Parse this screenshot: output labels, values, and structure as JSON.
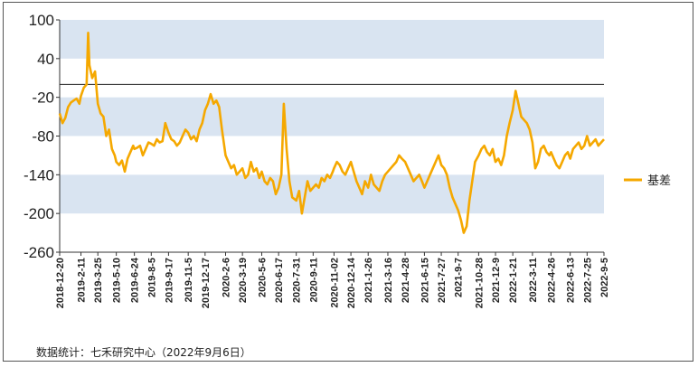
{
  "chart_data": {
    "type": "line",
    "series": [
      {
        "name": "基差",
        "color": "#F5A800",
        "points": [
          [
            "2018-12-20",
            -45
          ],
          [
            "2018-12-27",
            -60
          ],
          [
            "2019-01-03",
            -52
          ],
          [
            "2019-01-10",
            -35
          ],
          [
            "2019-01-17",
            -28
          ],
          [
            "2019-01-24",
            -25
          ],
          [
            "2019-01-31",
            -22
          ],
          [
            "2019-02-07",
            -30
          ],
          [
            "2019-02-11",
            -18
          ],
          [
            "2019-02-18",
            -5
          ],
          [
            "2019-02-25",
            0
          ],
          [
            "2019-03-01",
            80
          ],
          [
            "2019-03-04",
            30
          ],
          [
            "2019-03-11",
            10
          ],
          [
            "2019-03-18",
            20
          ],
          [
            "2019-03-25",
            -30
          ],
          [
            "2019-04-01",
            -45
          ],
          [
            "2019-04-08",
            -50
          ],
          [
            "2019-04-15",
            -80
          ],
          [
            "2019-04-22",
            -70
          ],
          [
            "2019-04-29",
            -100
          ],
          [
            "2019-05-06",
            -110
          ],
          [
            "2019-05-10",
            -120
          ],
          [
            "2019-05-17",
            -125
          ],
          [
            "2019-05-24",
            -118
          ],
          [
            "2019-05-31",
            -135
          ],
          [
            "2019-06-07",
            -115
          ],
          [
            "2019-06-14",
            -105
          ],
          [
            "2019-06-21",
            -95
          ],
          [
            "2019-06-24",
            -100
          ],
          [
            "2019-07-01",
            -98
          ],
          [
            "2019-07-08",
            -95
          ],
          [
            "2019-07-15",
            -110
          ],
          [
            "2019-07-22",
            -100
          ],
          [
            "2019-07-29",
            -90
          ],
          [
            "2019-08-05",
            -92
          ],
          [
            "2019-08-12",
            -95
          ],
          [
            "2019-08-19",
            -85
          ],
          [
            "2019-08-26",
            -90
          ],
          [
            "2019-09-02",
            -88
          ],
          [
            "2019-09-09",
            -60
          ],
          [
            "2019-09-17",
            -75
          ],
          [
            "2019-09-24",
            -85
          ],
          [
            "2019-10-01",
            -88
          ],
          [
            "2019-10-08",
            -95
          ],
          [
            "2019-10-15",
            -90
          ],
          [
            "2019-10-22",
            -80
          ],
          [
            "2019-10-29",
            -70
          ],
          [
            "2019-11-05",
            -75
          ],
          [
            "2019-11-12",
            -85
          ],
          [
            "2019-11-19",
            -80
          ],
          [
            "2019-11-26",
            -88
          ],
          [
            "2019-12-03",
            -70
          ],
          [
            "2019-12-10",
            -60
          ],
          [
            "2019-12-17",
            -40
          ],
          [
            "2019-12-24",
            -30
          ],
          [
            "2019-12-31",
            -15
          ],
          [
            "2020-01-07",
            -30
          ],
          [
            "2020-01-14",
            -25
          ],
          [
            "2020-01-21",
            -35
          ],
          [
            "2020-01-28",
            -70
          ],
          [
            "2020-02-06",
            -110
          ],
          [
            "2020-02-13",
            -120
          ],
          [
            "2020-02-20",
            -130
          ],
          [
            "2020-02-27",
            -125
          ],
          [
            "2020-03-05",
            -140
          ],
          [
            "2020-03-12",
            -135
          ],
          [
            "2020-03-19",
            -130
          ],
          [
            "2020-03-26",
            -145
          ],
          [
            "2020-04-02",
            -140
          ],
          [
            "2020-04-09",
            -120
          ],
          [
            "2020-04-16",
            -135
          ],
          [
            "2020-04-23",
            -130
          ],
          [
            "2020-04-30",
            -145
          ],
          [
            "2020-05-06",
            -135
          ],
          [
            "2020-05-13",
            -150
          ],
          [
            "2020-05-20",
            -155
          ],
          [
            "2020-05-27",
            -145
          ],
          [
            "2020-06-03",
            -150
          ],
          [
            "2020-06-10",
            -170
          ],
          [
            "2020-06-17",
            -160
          ],
          [
            "2020-06-24",
            -140
          ],
          [
            "2020-06-30",
            -30
          ],
          [
            "2020-07-07",
            -100
          ],
          [
            "2020-07-14",
            -150
          ],
          [
            "2020-07-21",
            -175
          ],
          [
            "2020-07-31",
            -180
          ],
          [
            "2020-08-07",
            -165
          ],
          [
            "2020-08-14",
            -200
          ],
          [
            "2020-08-21",
            -175
          ],
          [
            "2020-08-28",
            -150
          ],
          [
            "2020-09-04",
            -165
          ],
          [
            "2020-09-11",
            -160
          ],
          [
            "2020-09-18",
            -155
          ],
          [
            "2020-09-25",
            -160
          ],
          [
            "2020-10-02",
            -145
          ],
          [
            "2020-10-09",
            -150
          ],
          [
            "2020-10-16",
            -140
          ],
          [
            "2020-10-23",
            -145
          ],
          [
            "2020-10-30",
            -135
          ],
          [
            "2020-11-02",
            -130
          ],
          [
            "2020-11-09",
            -120
          ],
          [
            "2020-11-16",
            -125
          ],
          [
            "2020-11-23",
            -135
          ],
          [
            "2020-11-30",
            -140
          ],
          [
            "2020-12-07",
            -130
          ],
          [
            "2020-12-14",
            -120
          ],
          [
            "2020-12-21",
            -135
          ],
          [
            "2020-12-28",
            -150
          ],
          [
            "2021-01-04",
            -160
          ],
          [
            "2021-01-11",
            -170
          ],
          [
            "2021-01-18",
            -150
          ],
          [
            "2021-01-26",
            -160
          ],
          [
            "2021-02-02",
            -140
          ],
          [
            "2021-02-09",
            -155
          ],
          [
            "2021-02-16",
            -160
          ],
          [
            "2021-02-23",
            -165
          ],
          [
            "2021-03-02",
            -150
          ],
          [
            "2021-03-09",
            -140
          ],
          [
            "2021-03-16",
            -135
          ],
          [
            "2021-03-23",
            -130
          ],
          [
            "2021-03-30",
            -125
          ],
          [
            "2021-04-06",
            -120
          ],
          [
            "2021-04-13",
            -110
          ],
          [
            "2021-04-20",
            -115
          ],
          [
            "2021-04-28",
            -120
          ],
          [
            "2021-05-05",
            -130
          ],
          [
            "2021-05-12",
            -140
          ],
          [
            "2021-05-19",
            -150
          ],
          [
            "2021-05-26",
            -145
          ],
          [
            "2021-06-02",
            -140
          ],
          [
            "2021-06-09",
            -150
          ],
          [
            "2021-06-15",
            -160
          ],
          [
            "2021-06-22",
            -150
          ],
          [
            "2021-06-29",
            -140
          ],
          [
            "2021-07-06",
            -130
          ],
          [
            "2021-07-13",
            -120
          ],
          [
            "2021-07-20",
            -110
          ],
          [
            "2021-07-27",
            -125
          ],
          [
            "2021-08-03",
            -130
          ],
          [
            "2021-08-10",
            -140
          ],
          [
            "2021-08-17",
            -160
          ],
          [
            "2021-08-24",
            -175
          ],
          [
            "2021-08-31",
            -185
          ],
          [
            "2021-09-07",
            -195
          ],
          [
            "2021-09-14",
            -210
          ],
          [
            "2021-09-21",
            -230
          ],
          [
            "2021-09-28",
            -220
          ],
          [
            "2021-10-05",
            -180
          ],
          [
            "2021-10-12",
            -150
          ],
          [
            "2021-10-19",
            -120
          ],
          [
            "2021-10-28",
            -110
          ],
          [
            "2021-11-04",
            -100
          ],
          [
            "2021-11-11",
            -95
          ],
          [
            "2021-11-18",
            -105
          ],
          [
            "2021-11-25",
            -110
          ],
          [
            "2021-12-02",
            -100
          ],
          [
            "2021-12-09",
            -120
          ],
          [
            "2021-12-16",
            -115
          ],
          [
            "2021-12-23",
            -125
          ],
          [
            "2021-12-30",
            -110
          ],
          [
            "2022-01-06",
            -80
          ],
          [
            "2022-01-13",
            -60
          ],
          [
            "2022-01-21",
            -40
          ],
          [
            "2022-01-28",
            -10
          ],
          [
            "2022-02-04",
            -30
          ],
          [
            "2022-02-11",
            -50
          ],
          [
            "2022-02-18",
            -55
          ],
          [
            "2022-02-25",
            -60
          ],
          [
            "2022-03-04",
            -70
          ],
          [
            "2022-03-11",
            -90
          ],
          [
            "2022-03-18",
            -130
          ],
          [
            "2022-03-25",
            -120
          ],
          [
            "2022-04-01",
            -100
          ],
          [
            "2022-04-08",
            -95
          ],
          [
            "2022-04-15",
            -105
          ],
          [
            "2022-04-22",
            -110
          ],
          [
            "2022-04-26",
            -105
          ],
          [
            "2022-05-03",
            -115
          ],
          [
            "2022-05-10",
            -125
          ],
          [
            "2022-05-17",
            -130
          ],
          [
            "2022-05-24",
            -120
          ],
          [
            "2022-05-31",
            -110
          ],
          [
            "2022-06-07",
            -105
          ],
          [
            "2022-06-13",
            -115
          ],
          [
            "2022-06-20",
            -100
          ],
          [
            "2022-06-27",
            -95
          ],
          [
            "2022-07-04",
            -90
          ],
          [
            "2022-07-11",
            -100
          ],
          [
            "2022-07-18",
            -95
          ],
          [
            "2022-07-25",
            -80
          ],
          [
            "2022-08-01",
            -95
          ],
          [
            "2022-08-08",
            -90
          ],
          [
            "2022-08-15",
            -85
          ],
          [
            "2022-08-22",
            -95
          ],
          [
            "2022-08-29",
            -90
          ],
          [
            "2022-09-05",
            -85
          ]
        ]
      }
    ],
    "x_tick_labels": [
      "2018-12-20",
      "2019-2-11",
      "2019-3-25",
      "2019-5-10",
      "2019-6-24",
      "2019-8-5",
      "2019-9-17",
      "2019-11-5",
      "2019-12-17",
      "2020-2-6",
      "2020-3-19",
      "2020-5-6",
      "2020-6-17",
      "2020-7-31",
      "2020-9-11",
      "2020-11-02",
      "2020-12-14",
      "2021-1-26",
      "2021-3-16",
      "2021-4-28",
      "2021-6-15",
      "2021-7-27",
      "2021-9-7",
      "2021-10-28",
      "2021-12-9",
      "2022-1-21",
      "2022-3-11",
      "2022-4-26",
      "2022-6-13",
      "2022-7-25",
      "2022-9-5"
    ],
    "x_tick_dates": [
      "2018-12-20",
      "2019-02-11",
      "2019-03-25",
      "2019-05-10",
      "2019-06-24",
      "2019-08-05",
      "2019-09-17",
      "2019-11-05",
      "2019-12-17",
      "2020-02-06",
      "2020-03-19",
      "2020-05-06",
      "2020-06-17",
      "2020-07-31",
      "2020-09-11",
      "2020-11-02",
      "2020-12-14",
      "2021-01-26",
      "2021-03-16",
      "2021-04-28",
      "2021-06-15",
      "2021-07-27",
      "2021-09-07",
      "2021-10-28",
      "2021-12-09",
      "2022-01-21",
      "2022-03-11",
      "2022-04-26",
      "2022-06-13",
      "2022-07-25",
      "2022-09-05"
    ],
    "y_ticks": [
      100,
      40,
      -20,
      -80,
      -140,
      -200,
      -260
    ],
    "ylim": [
      -260,
      100
    ],
    "reference_line": 0,
    "band_color": "#D9E4F1",
    "legend_position": "right"
  },
  "source_text": "数据统计：七禾研究中心（2022年9月6日）"
}
